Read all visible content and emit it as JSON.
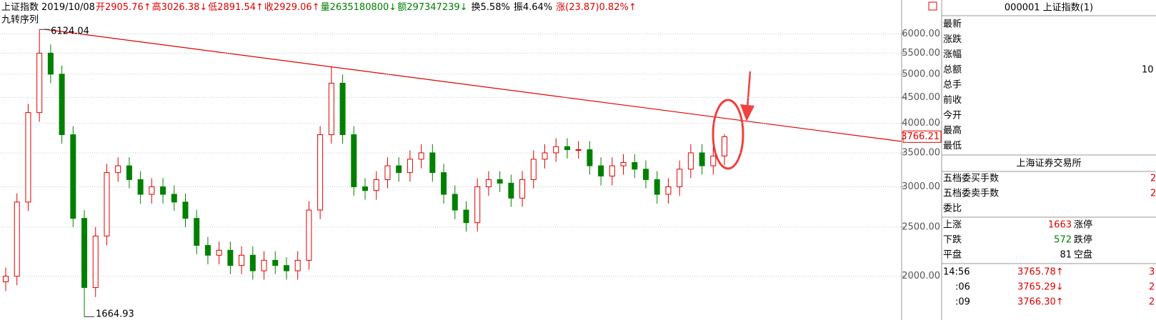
{
  "header": {
    "items": [
      {
        "text": "上证指数",
        "color": "#000000"
      },
      {
        "text": "2019/10/08",
        "color": "#000000"
      },
      {
        "text": "开2905.76↑",
        "color": "#e00000"
      },
      {
        "text": "高3026.38↓",
        "color": "#e00000"
      },
      {
        "text": "低2891.54↑",
        "color": "#e00000"
      },
      {
        "text": "收2929.06↑",
        "color": "#e00000"
      },
      {
        "text": "量2635180800↓",
        "color": "#008000"
      },
      {
        "text": "额297347239↓",
        "color": "#008000"
      },
      {
        "text": "换5.58%",
        "color": "#000000"
      },
      {
        "text": "振4.64%",
        "color": "#000000"
      },
      {
        "text": "涨(23.87)0.82%↑",
        "color": "#e00000"
      }
    ],
    "indicator": "九转序列"
  },
  "chart_data": {
    "type": "candlestick",
    "log_scale": true,
    "grid": true,
    "up_color": "#e00000",
    "down_color": "#008000",
    "ylim": [
      1640,
      6560
    ],
    "yticks": [
      {
        "value": 2000,
        "label": "2000.00"
      },
      {
        "value": 2500,
        "label": "2500.00"
      },
      {
        "value": 3000,
        "label": "3000.00"
      },
      {
        "value": 3500,
        "label": "3500.00"
      },
      {
        "value": 4000,
        "label": "4000.00"
      },
      {
        "value": 4500,
        "label": "4500.00"
      },
      {
        "value": 5000,
        "label": "5000.00"
      },
      {
        "value": 5500,
        "label": "5500.00"
      },
      {
        "value": 6000,
        "label": "6000.00"
      }
    ],
    "open": [
      1950,
      2000,
      2800,
      4200,
      5500,
      5000,
      3800,
      2600,
      1900,
      2400,
      3200,
      3300,
      3100,
      2900,
      3000,
      2900,
      2800,
      2600,
      2300,
      2200,
      2250,
      2100,
      2200,
      2050,
      2150,
      2100,
      2050,
      2150,
      2700,
      3800,
      4800,
      3800,
      3000,
      2950,
      3100,
      3300,
      3200,
      3400,
      3500,
      3200,
      2900,
      2700,
      2550,
      3000,
      3100,
      3050,
      2850,
      3100,
      3400,
      3500,
      3600,
      3550,
      3550,
      3300,
      3150,
      3300,
      3350,
      3250,
      3100,
      2900,
      3000,
      3250,
      3500,
      3300,
      3450
    ],
    "high": [
      2080,
      2910,
      4370,
      6124,
      5720,
      5200,
      3950,
      2700,
      2500,
      3330,
      3430,
      3430,
      3220,
      3120,
      3120,
      3020,
      2910,
      2700,
      2390,
      2340,
      2340,
      2290,
      2290,
      2240,
      2240,
      2180,
      2240,
      2810,
      3950,
      5178,
      4990,
      3950,
      3120,
      3220,
      3430,
      3430,
      3540,
      3640,
      3640,
      3330,
      3020,
      2810,
      3120,
      3220,
      3220,
      3170,
      3220,
      3540,
      3640,
      3740,
      3740,
      3690,
      3690,
      3430,
      3430,
      3480,
      3480,
      3380,
      3220,
      3120,
      3380,
      3640,
      3640,
      3590,
      3810
    ],
    "low": [
      1870,
      1920,
      2690,
      4030,
      4800,
      3650,
      2500,
      1664,
      1820,
      2300,
      3070,
      2980,
      2780,
      2780,
      2780,
      2690,
      2500,
      2210,
      2110,
      2110,
      2020,
      2020,
      1970,
      1970,
      2020,
      1970,
      1970,
      2060,
      2590,
      3650,
      3650,
      2880,
      2830,
      2830,
      2980,
      3070,
      3070,
      3260,
      3070,
      2780,
      2590,
      2450,
      2450,
      2880,
      2930,
      2740,
      2740,
      2980,
      3260,
      3360,
      3410,
      3410,
      3170,
      3020,
      3020,
      3170,
      3120,
      2980,
      2780,
      2780,
      2880,
      3120,
      3170,
      3170,
      3310
    ],
    "close": [
      2000,
      2800,
      4200,
      5500,
      5000,
      3800,
      2600,
      1900,
      2400,
      3200,
      3300,
      3100,
      2900,
      3000,
      2900,
      2800,
      2600,
      2300,
      2200,
      2250,
      2100,
      2200,
      2050,
      2150,
      2100,
      2050,
      2150,
      2700,
      3800,
      4800,
      3800,
      3000,
      2950,
      3100,
      3300,
      3200,
      3400,
      3500,
      3200,
      2900,
      2700,
      2550,
      3000,
      3100,
      3050,
      2850,
      3100,
      3400,
      3500,
      3600,
      3550,
      3550,
      3300,
      3150,
      3300,
      3350,
      3250,
      3100,
      2900,
      3000,
      3250,
      3500,
      3300,
      3450,
      3766
    ],
    "annotations": [
      {
        "text": "6124.04",
        "value": 6124.04
      },
      {
        "text": "1664.93",
        "value": 1664.93
      }
    ],
    "last_price": {
      "value": 3766.21,
      "label": "3766.21"
    }
  },
  "panel": {
    "title": "000001 上证指数(1)",
    "quote_rows": [
      {
        "label": "最新"
      },
      {
        "label": "涨跌"
      },
      {
        "label": "涨幅"
      },
      {
        "label": "总额",
        "value": "10"
      },
      {
        "label": "总手"
      },
      {
        "label": "前收"
      },
      {
        "label": "今开"
      },
      {
        "label": "最高"
      },
      {
        "label": "最低"
      }
    ],
    "exchange": "上海证券交易所",
    "order_rows": [
      {
        "label": "五档委买手数",
        "value": "2"
      },
      {
        "label": "五档委卖手数",
        "value": "2"
      },
      {
        "label": "委比"
      }
    ],
    "breadth_rows": [
      {
        "label": "上涨",
        "count": 1663,
        "suffix": "涨停",
        "color": "#e00000"
      },
      {
        "label": "下跌",
        "count": 572,
        "suffix": "跌停",
        "color": "#008000"
      },
      {
        "label": "平盘",
        "count": 81,
        "suffix": "空盘",
        "color": "#000000"
      }
    ],
    "ticks": [
      {
        "time": "14:56",
        "price": "3765.78↑",
        "tail": "3"
      },
      {
        "time": ":06",
        "price": "3765.29↓",
        "tail": "2"
      },
      {
        "time": ":09",
        "price": "3766.30↑",
        "tail": "2"
      }
    ]
  }
}
